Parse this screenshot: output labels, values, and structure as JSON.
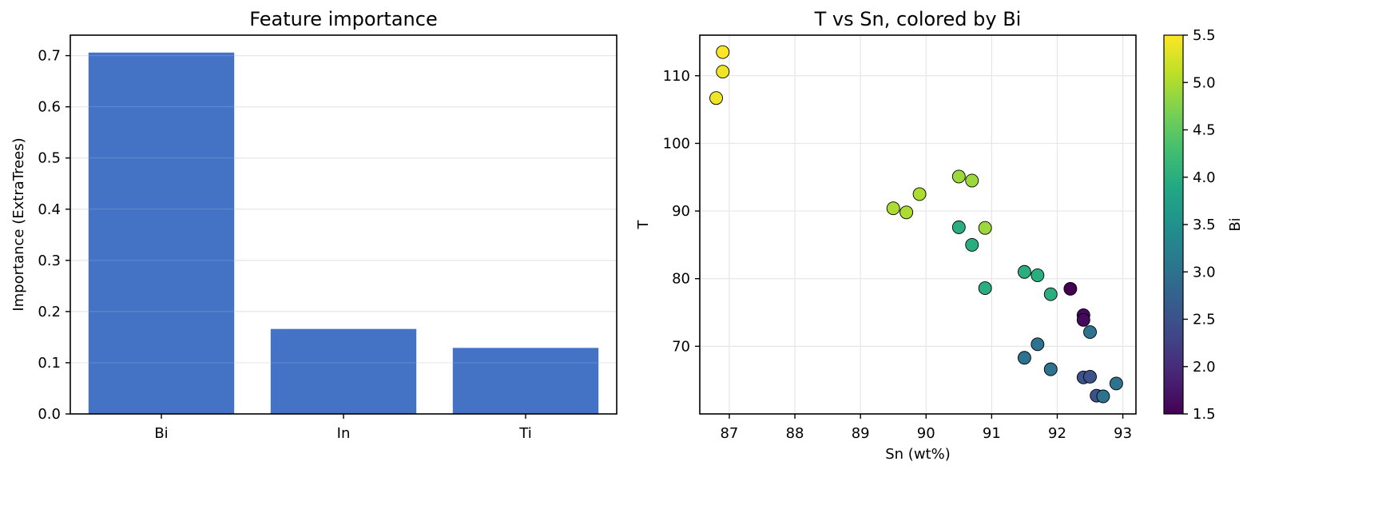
{
  "chart_data": [
    {
      "type": "bar",
      "title": "Feature importance",
      "xlabel": "",
      "ylabel": "Importance (ExtraTrees)",
      "categories": [
        "Bi",
        "In",
        "Ti"
      ],
      "values": [
        0.706,
        0.166,
        0.129
      ],
      "ylim": [
        0,
        0.74
      ],
      "yticks": [
        0.0,
        0.1,
        0.2,
        0.3,
        0.4,
        0.5,
        0.6,
        0.7
      ],
      "ytick_labels": [
        "0.0",
        "0.1",
        "0.2",
        "0.3",
        "0.4",
        "0.5",
        "0.6",
        "0.7"
      ],
      "bar_color": "#4472c4",
      "grid": "y"
    },
    {
      "type": "scatter",
      "title": "T vs Sn, colored by Bi",
      "xlabel": "Sn (wt%)",
      "ylabel": "T",
      "xlim": [
        86.55,
        93.2
      ],
      "ylim": [
        60,
        116
      ],
      "xticks": [
        87,
        88,
        89,
        90,
        91,
        92,
        93
      ],
      "xtick_labels": [
        "87",
        "88",
        "89",
        "90",
        "91",
        "92",
        "93"
      ],
      "yticks": [
        70,
        80,
        90,
        100,
        110
      ],
      "ytick_labels": [
        "70",
        "80",
        "90",
        "100",
        "110"
      ],
      "grid": "both",
      "colorbar": {
        "label": "Bi",
        "range": [
          1.5,
          5.5
        ],
        "ticks": [
          1.5,
          2.0,
          2.5,
          3.0,
          3.5,
          4.0,
          4.5,
          5.0,
          5.5
        ],
        "tick_labels": [
          "1.5",
          "2.0",
          "2.5",
          "3.0",
          "3.5",
          "4.0",
          "4.5",
          "5.0",
          "5.5"
        ],
        "colormap": "viridis"
      },
      "points": [
        {
          "x": 86.9,
          "y": 113.5,
          "c": 5.5
        },
        {
          "x": 86.9,
          "y": 110.6,
          "c": 5.4
        },
        {
          "x": 86.8,
          "y": 106.7,
          "c": 5.4
        },
        {
          "x": 90.5,
          "y": 95.1,
          "c": 4.9
        },
        {
          "x": 90.7,
          "y": 94.5,
          "c": 4.9
        },
        {
          "x": 89.9,
          "y": 92.5,
          "c": 5.0
        },
        {
          "x": 89.5,
          "y": 90.4,
          "c": 5.0
        },
        {
          "x": 89.7,
          "y": 89.8,
          "c": 5.0
        },
        {
          "x": 90.5,
          "y": 87.6,
          "c": 4.0
        },
        {
          "x": 90.9,
          "y": 87.5,
          "c": 4.9
        },
        {
          "x": 90.7,
          "y": 85.0,
          "c": 4.0
        },
        {
          "x": 91.5,
          "y": 81.0,
          "c": 4.0
        },
        {
          "x": 91.7,
          "y": 80.5,
          "c": 4.0
        },
        {
          "x": 90.9,
          "y": 78.6,
          "c": 4.0
        },
        {
          "x": 91.9,
          "y": 77.7,
          "c": 4.0
        },
        {
          "x": 92.2,
          "y": 78.5,
          "c": 1.5
        },
        {
          "x": 92.4,
          "y": 74.6,
          "c": 1.6
        },
        {
          "x": 92.4,
          "y": 73.9,
          "c": 1.6
        },
        {
          "x": 92.5,
          "y": 72.1,
          "c": 3.0
        },
        {
          "x": 91.7,
          "y": 70.3,
          "c": 3.0
        },
        {
          "x": 91.5,
          "y": 68.3,
          "c": 3.0
        },
        {
          "x": 91.9,
          "y": 66.6,
          "c": 3.0
        },
        {
          "x": 92.4,
          "y": 65.4,
          "c": 2.5
        },
        {
          "x": 92.5,
          "y": 65.5,
          "c": 2.5
        },
        {
          "x": 92.9,
          "y": 64.5,
          "c": 3.0
        },
        {
          "x": 92.6,
          "y": 62.7,
          "c": 2.5
        },
        {
          "x": 92.7,
          "y": 62.6,
          "c": 3.0
        }
      ]
    }
  ]
}
